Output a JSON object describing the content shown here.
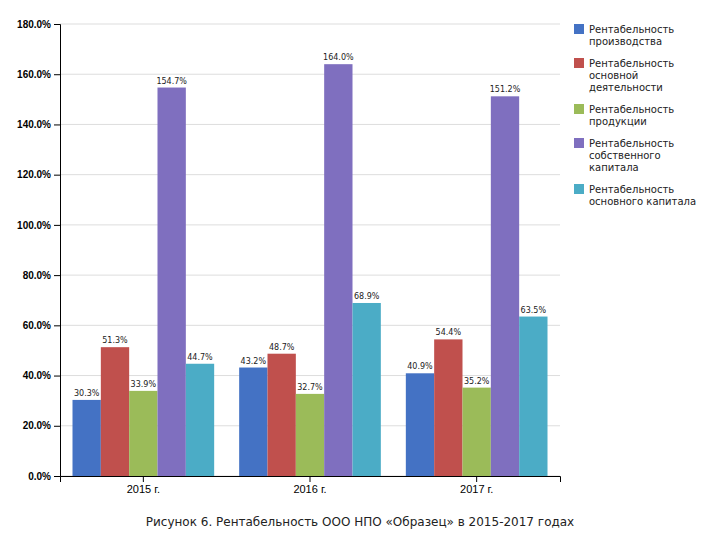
{
  "chart_data": {
    "type": "bar",
    "title": "Рисунок 6. Рентабельность ООО НПО «Образец» в 2015-2017 годах",
    "categories": [
      "2015 г.",
      "2016 г.",
      "2017 г."
    ],
    "series": [
      {
        "name": "Рентабельность\nпроизводства",
        "color": "#4472c4",
        "values": [
          30.3,
          43.2,
          40.9
        ],
        "value_labels": [
          "30.3%",
          "43.2%",
          "40.9%"
        ]
      },
      {
        "name": "Рентабельность\nосновной\nдеятельности",
        "color": "#c0504d",
        "values": [
          51.3,
          48.7,
          54.4
        ],
        "value_labels": [
          "51.3%",
          "48.7%",
          "54.4%"
        ]
      },
      {
        "name": "Рентабельность\nпродукции",
        "color": "#9bbb59",
        "values": [
          33.9,
          32.7,
          35.2
        ],
        "value_labels": [
          "33.9%",
          "32.7%",
          "35.2%"
        ]
      },
      {
        "name": "Рентабельность\nсобственного\nкапитала",
        "color": "#7f6fbf",
        "values": [
          154.7,
          164.0,
          151.2
        ],
        "value_labels": [
          "154.7%",
          "164.0%",
          "151.2%"
        ]
      },
      {
        "name": "Рентабельность\nосновного капитала",
        "color": "#4bacc6",
        "values": [
          44.7,
          68.9,
          63.5
        ],
        "value_labels": [
          "44.7%",
          "68.9%",
          "63.5%"
        ]
      }
    ],
    "ylim": [
      0,
      180
    ],
    "yticks": [
      {
        "value": 0,
        "label": "0.0%"
      },
      {
        "value": 20,
        "label": "20.0%"
      },
      {
        "value": 40,
        "label": "40.0%"
      },
      {
        "value": 60,
        "label": "60.0%"
      },
      {
        "value": 80,
        "label": "80.0%"
      },
      {
        "value": 100,
        "label": "100.0%"
      },
      {
        "value": 120,
        "label": "120.0%"
      },
      {
        "value": 140,
        "label": "140.0%"
      },
      {
        "value": 160,
        "label": "160.0%"
      },
      {
        "value": 180,
        "label": "180.0%"
      }
    ],
    "grid": true,
    "legend": "right",
    "data_labels": true
  }
}
